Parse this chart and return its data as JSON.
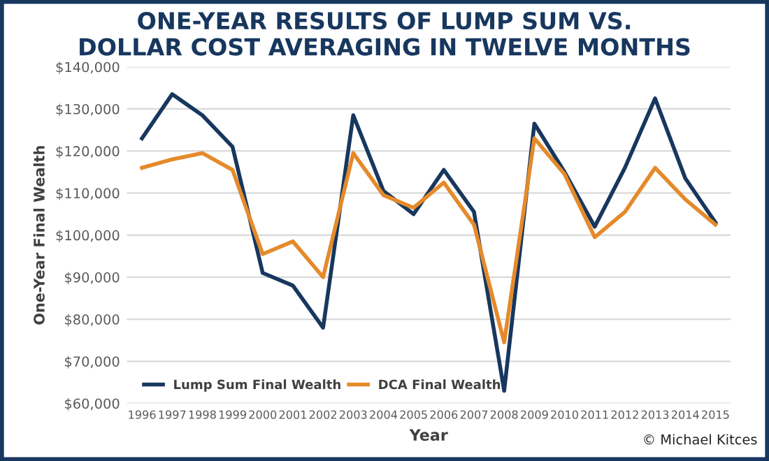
{
  "chart_data": {
    "type": "line",
    "title": "ONE-YEAR RESULTS OF LUMP SUM VS.\nDOLLAR COST AVERAGING IN TWELVE MONTHS",
    "xlabel": "Year",
    "ylabel": "One-Year Final Wealth",
    "categories": [
      "1996",
      "1997",
      "1998",
      "1999",
      "2000",
      "2001",
      "2002",
      "2003",
      "2004",
      "2005",
      "2006",
      "2007",
      "2008",
      "2009",
      "2010",
      "2011",
      "2012",
      "2013",
      "2014",
      "2015"
    ],
    "series": [
      {
        "name": "Lump Sum Final Wealth",
        "color": "#17375e",
        "values": [
          123000,
          133500,
          128500,
          121000,
          91000,
          88000,
          78000,
          128500,
          110500,
          105000,
          115500,
          105500,
          63000,
          126500,
          115000,
          102000,
          116000,
          132500,
          113500,
          103000
        ]
      },
      {
        "name": "DCA Final Wealth",
        "color": "#e58a2b",
        "values": [
          116000,
          118000,
          119500,
          115500,
          95500,
          98500,
          90000,
          119500,
          109500,
          106500,
          112500,
          102500,
          74500,
          123000,
          114500,
          99500,
          105500,
          116000,
          108500,
          102500
        ]
      }
    ],
    "ylim": [
      60000,
      140000
    ],
    "yticks": [
      {
        "value": 60000,
        "label": "$60,000"
      },
      {
        "value": 70000,
        "label": "$70,000"
      },
      {
        "value": 80000,
        "label": "$80,000"
      },
      {
        "value": 90000,
        "label": "$90,000"
      },
      {
        "value": 100000,
        "label": "$100,000"
      },
      {
        "value": 110000,
        "label": "$110,000"
      },
      {
        "value": 120000,
        "label": "$120,000"
      },
      {
        "value": 130000,
        "label": "$130,000"
      },
      {
        "value": 140000,
        "label": "$140,000"
      }
    ],
    "grid": "y",
    "legend": "bottom left",
    "marker": "none",
    "line_style": "solid",
    "annotations": [
      "© Michael Kitces"
    ]
  }
}
